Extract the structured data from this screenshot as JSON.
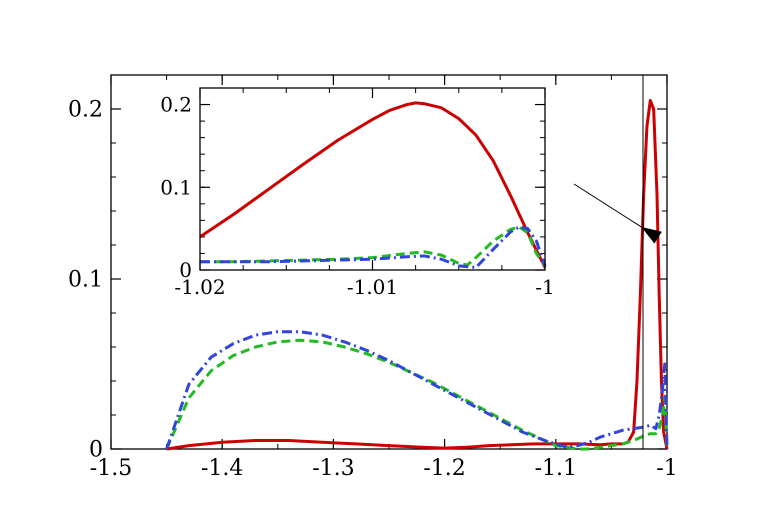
{
  "chart_data": [
    {
      "type": "line",
      "title": "",
      "xlabel": "",
      "ylabel": "",
      "xlim": [
        -1.5,
        -1.0
      ],
      "ylim": [
        0,
        0.22
      ],
      "x_ticks": [
        -1.5,
        -1.4,
        -1.3,
        -1.2,
        -1.1,
        -1.0
      ],
      "x_tick_labels": [
        "-1.5",
        "-1.4",
        "-1.3",
        "-1.2",
        "-1.1",
        "-1"
      ],
      "y_ticks": [
        0,
        0.1,
        0.2
      ],
      "y_tick_labels": [
        "0",
        "0.1",
        "0.2"
      ],
      "grid": false,
      "legend": "none",
      "series": [
        {
          "style": "solid",
          "color": "#cc0000",
          "x": [
            -1.45,
            -1.43,
            -1.4,
            -1.37,
            -1.34,
            -1.31,
            -1.28,
            -1.25,
            -1.22,
            -1.2,
            -1.18,
            -1.16,
            -1.14,
            -1.12,
            -1.1,
            -1.08,
            -1.06,
            -1.05,
            -1.04,
            -1.035,
            -1.03,
            -1.027,
            -1.024,
            -1.021,
            -1.018,
            -1.015,
            -1.012,
            -1.009,
            -1.007,
            -1.005,
            -1.003,
            -1.0
          ],
          "y": [
            0.0,
            0.002,
            0.004,
            0.005,
            0.005,
            0.004,
            0.003,
            0.002,
            0.001,
            0.0005,
            0.001,
            0.002,
            0.0025,
            0.003,
            0.003,
            0.003,
            0.0025,
            0.003,
            0.003,
            0.004,
            0.01,
            0.04,
            0.09,
            0.15,
            0.19,
            0.205,
            0.2,
            0.15,
            0.09,
            0.04,
            0.01,
            0.0
          ]
        },
        {
          "style": "dashed",
          "color": "#22bb22",
          "x": [
            -1.45,
            -1.43,
            -1.41,
            -1.39,
            -1.37,
            -1.35,
            -1.33,
            -1.31,
            -1.29,
            -1.27,
            -1.25,
            -1.23,
            -1.21,
            -1.19,
            -1.17,
            -1.15,
            -1.13,
            -1.11,
            -1.1,
            -1.09,
            -1.08,
            -1.07,
            -1.06,
            -1.05,
            -1.04,
            -1.03,
            -1.02,
            -1.015,
            -1.01,
            -1.007,
            -1.004,
            -1.002,
            -1.0
          ],
          "y": [
            0.0,
            0.03,
            0.046,
            0.055,
            0.06,
            0.063,
            0.064,
            0.063,
            0.06,
            0.056,
            0.051,
            0.045,
            0.039,
            0.032,
            0.025,
            0.018,
            0.011,
            0.005,
            0.002,
            0.001,
            0.0,
            0.0,
            0.001,
            0.002,
            0.003,
            0.005,
            0.008,
            0.009,
            0.009,
            0.012,
            0.02,
            0.03,
            0.0
          ]
        },
        {
          "style": "dash-dot",
          "color": "#3344dd",
          "x": [
            -1.45,
            -1.43,
            -1.41,
            -1.39,
            -1.37,
            -1.35,
            -1.33,
            -1.31,
            -1.29,
            -1.27,
            -1.25,
            -1.23,
            -1.21,
            -1.19,
            -1.17,
            -1.15,
            -1.13,
            -1.11,
            -1.1,
            -1.09,
            -1.08,
            -1.07,
            -1.06,
            -1.05,
            -1.04,
            -1.03,
            -1.02,
            -1.015,
            -1.01,
            -1.007,
            -1.004,
            -1.002,
            -1.0
          ],
          "y": [
            0.0,
            0.038,
            0.054,
            0.062,
            0.067,
            0.069,
            0.069,
            0.067,
            0.063,
            0.058,
            0.052,
            0.045,
            0.038,
            0.031,
            0.024,
            0.017,
            0.01,
            0.005,
            0.003,
            0.001,
            0.002,
            0.004,
            0.007,
            0.009,
            0.011,
            0.012,
            0.013,
            0.014,
            0.012,
            0.02,
            0.035,
            0.05,
            0.0
          ]
        }
      ]
    },
    {
      "type": "line",
      "title": "",
      "xlabel": "",
      "ylabel": "",
      "xlim": [
        -1.02,
        -1.0
      ],
      "ylim": [
        0,
        0.22
      ],
      "x_ticks": [
        -1.02,
        -1.01,
        -1.0
      ],
      "x_tick_labels": [
        "-1.02",
        "-1.01",
        "-1"
      ],
      "y_ticks": [
        0,
        0.1,
        0.2
      ],
      "y_tick_labels": [
        "0",
        "0.1",
        "0.2"
      ],
      "grid": false,
      "legend": "none",
      "series": [
        {
          "style": "solid",
          "color": "#cc0000",
          "x": [
            -1.02,
            -1.018,
            -1.016,
            -1.014,
            -1.012,
            -1.01,
            -1.009,
            -1.008,
            -1.0075,
            -1.007,
            -1.006,
            -1.005,
            -1.004,
            -1.003,
            -1.002,
            -1.001,
            -1.0
          ],
          "y": [
            0.04,
            0.068,
            0.098,
            0.128,
            0.157,
            0.182,
            0.193,
            0.2,
            0.202,
            0.201,
            0.196,
            0.183,
            0.163,
            0.132,
            0.09,
            0.045,
            0.003
          ]
        },
        {
          "style": "dashed",
          "color": "#22bb22",
          "x": [
            -1.02,
            -1.018,
            -1.016,
            -1.014,
            -1.012,
            -1.01,
            -1.008,
            -1.007,
            -1.006,
            -1.005,
            -1.0045,
            -1.004,
            -1.003,
            -1.002,
            -1.0015,
            -1.001,
            -1.0005,
            -1.0
          ],
          "y": [
            0.01,
            0.01,
            0.011,
            0.012,
            0.013,
            0.015,
            0.02,
            0.022,
            0.018,
            0.008,
            0.006,
            0.015,
            0.035,
            0.049,
            0.052,
            0.045,
            0.02,
            0.005
          ]
        },
        {
          "style": "dash-dot",
          "color": "#3344dd",
          "x": [
            -1.02,
            -1.018,
            -1.016,
            -1.014,
            -1.012,
            -1.01,
            -1.008,
            -1.007,
            -1.006,
            -1.005,
            -1.004,
            -1.003,
            -1.002,
            -1.0015,
            -1.001,
            -1.0005,
            -1.0
          ],
          "y": [
            0.01,
            0.01,
            0.01,
            0.011,
            0.012,
            0.013,
            0.016,
            0.017,
            0.013,
            0.005,
            0.003,
            0.025,
            0.046,
            0.052,
            0.05,
            0.035,
            0.005
          ]
        }
      ]
    }
  ]
}
